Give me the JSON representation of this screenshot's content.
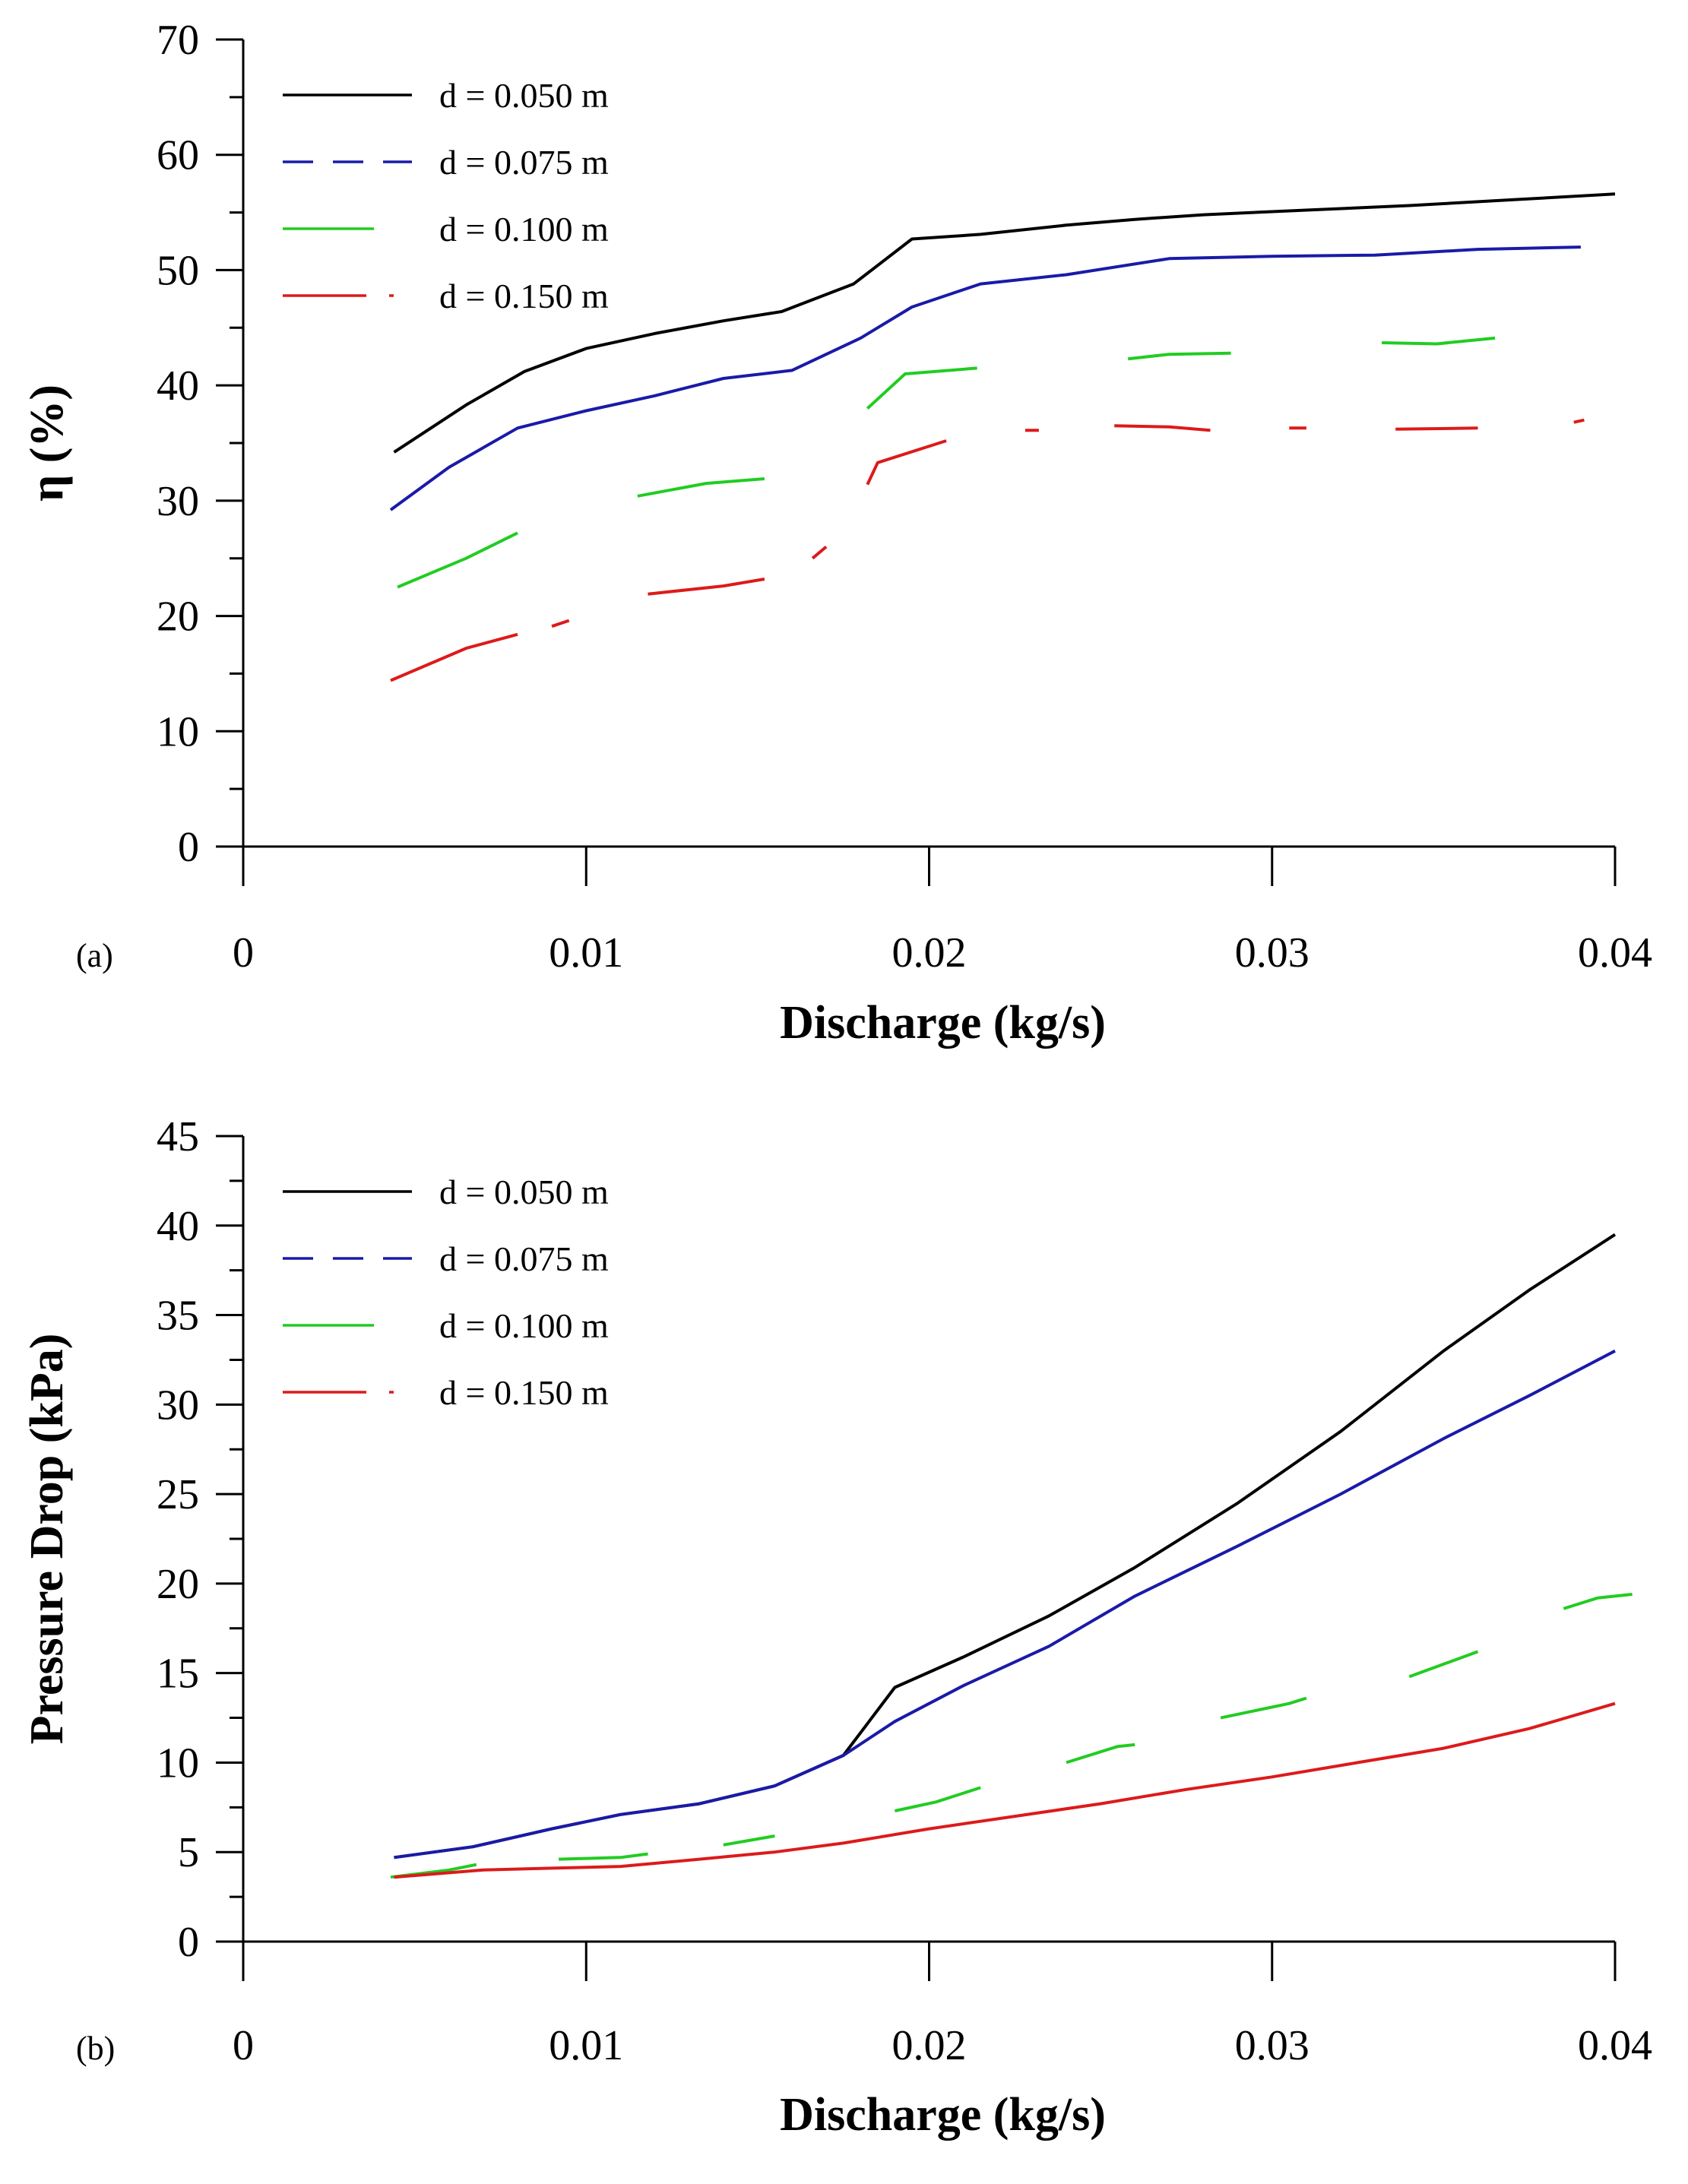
{
  "chart_data": [
    {
      "type": "line",
      "panel_label": "(a)",
      "xlabel": "Discharge (kg/s)",
      "ylabel": "η (%)",
      "xlim": [
        0,
        0.04
      ],
      "ylim": [
        0,
        70
      ],
      "xticks": [
        0,
        0.01,
        0.02,
        0.03,
        0.04
      ],
      "xtick_labels": [
        "0",
        "0.01",
        "0.02",
        "0.03",
        "0.04"
      ],
      "yticks": [
        0,
        10,
        20,
        30,
        40,
        50,
        60,
        70
      ],
      "ytick_labels": [
        "0",
        "10",
        "20",
        "30",
        "40",
        "50",
        "60",
        "70"
      ],
      "legend_position": "top-left",
      "series": [
        {
          "name": "d = 0.050 m",
          "color": "#000000",
          "dash": "solid",
          "x": [
            0.0044,
            0.0065,
            0.0082,
            0.01,
            0.012,
            0.014,
            0.0157,
            0.0178,
            0.0195,
            0.0215,
            0.024,
            0.026,
            0.028,
            0.031,
            0.034,
            0.037,
            0.04
          ],
          "y": [
            34.2,
            38.3,
            41.2,
            43.2,
            44.5,
            45.6,
            46.4,
            48.8,
            52.7,
            53.1,
            53.9,
            54.4,
            54.8,
            55.2,
            55.6,
            56.1,
            56.6
          ]
        },
        {
          "name": "d = 0.075 m",
          "color": "#1a1aa8",
          "dash": "long-dash",
          "x": [
            0.0043,
            0.006,
            0.008,
            0.01,
            0.012,
            0.014,
            0.016,
            0.018,
            0.0195,
            0.0215,
            0.024,
            0.027,
            0.03,
            0.033,
            0.036,
            0.039
          ],
          "y": [
            29.2,
            32.9,
            36.3,
            37.8,
            39.1,
            40.6,
            41.3,
            44.1,
            46.8,
            48.8,
            49.6,
            51.0,
            51.2,
            51.3,
            51.8,
            52.0
          ]
        },
        {
          "name": "d = 0.100 m",
          "color": "#22cc22",
          "dash": "long-gap",
          "x": [
            0.0045,
            0.0065,
            0.008,
            0.0115,
            0.0135,
            0.0152,
            0.0182,
            0.0193,
            0.0214,
            0.0258,
            0.027,
            0.0288,
            0.0332,
            0.0348,
            0.0365
          ],
          "y": [
            22.5,
            25.0,
            27.2,
            30.4,
            31.5,
            31.9,
            38.0,
            41.0,
            41.5,
            42.3,
            42.7,
            42.8,
            43.7,
            43.6,
            44.1
          ],
          "segments": [
            [
              0,
              2
            ],
            [
              3,
              5
            ],
            [
              6,
              8
            ],
            [
              9,
              11
            ],
            [
              12,
              14
            ]
          ]
        },
        {
          "name": "d = 0.150 m",
          "color": "#dd1a1a",
          "dash": "dash-dot",
          "x": [
            0.0043,
            0.0065,
            0.008,
            0.009,
            0.0095,
            0.0118,
            0.014,
            0.0152,
            0.0166,
            0.017,
            0.0182,
            0.0185,
            0.0205,
            0.0228,
            0.0232,
            0.0254,
            0.027,
            0.0282,
            0.0305,
            0.031,
            0.0336,
            0.036,
            0.0388,
            0.0391
          ],
          "y": [
            14.4,
            17.2,
            18.4,
            19.1,
            19.6,
            21.9,
            22.6,
            23.2,
            25.0,
            26.0,
            31.4,
            33.3,
            35.2,
            36.1,
            36.1,
            36.5,
            36.4,
            36.1,
            36.3,
            36.3,
            36.2,
            36.3,
            36.8,
            37.0
          ],
          "segments": [
            [
              0,
              2
            ],
            [
              3,
              4
            ],
            [
              5,
              7
            ],
            [
              8,
              9
            ],
            [
              10,
              12
            ],
            [
              13,
              14
            ],
            [
              15,
              17
            ],
            [
              18,
              19
            ],
            [
              20,
              21
            ],
            [
              22,
              23
            ]
          ]
        }
      ]
    },
    {
      "type": "line",
      "panel_label": "(b)",
      "xlabel": "Discharge (kg/s)",
      "ylabel": "Pressure Drop (kPa)",
      "xlim": [
        0,
        0.04
      ],
      "ylim": [
        0,
        45
      ],
      "xticks": [
        0,
        0.01,
        0.02,
        0.03,
        0.04
      ],
      "xtick_labels": [
        "0",
        "0.01",
        "0.02",
        "0.03",
        "0.04"
      ],
      "yticks": [
        0,
        5,
        10,
        15,
        20,
        25,
        30,
        35,
        40,
        45
      ],
      "ytick_labels": [
        "0",
        "5",
        "10",
        "15",
        "20",
        "25",
        "30",
        "35",
        "40",
        "45"
      ],
      "legend_position": "top-left",
      "series": [
        {
          "name": "d = 0.050 m",
          "color": "#000000",
          "dash": "solid",
          "x": [
            0.0044,
            0.0067,
            0.009,
            0.011,
            0.0133,
            0.0155,
            0.0175,
            0.019,
            0.021,
            0.0235,
            0.026,
            0.029,
            0.032,
            0.035,
            0.0375,
            0.04
          ],
          "y": [
            4.7,
            5.3,
            6.3,
            7.1,
            7.7,
            8.7,
            10.4,
            14.2,
            15.9,
            18.2,
            20.9,
            24.5,
            28.5,
            33.0,
            36.4,
            39.5
          ]
        },
        {
          "name": "d = 0.075 m",
          "color": "#1a1aa8",
          "dash": "long-dash",
          "x": [
            0.0044,
            0.0067,
            0.009,
            0.011,
            0.0133,
            0.0155,
            0.0175,
            0.019,
            0.021,
            0.0235,
            0.026,
            0.029,
            0.032,
            0.035,
            0.0375,
            0.04
          ],
          "y": [
            4.7,
            5.3,
            6.3,
            7.1,
            7.7,
            8.7,
            10.4,
            12.3,
            14.3,
            16.5,
            19.3,
            22.1,
            25.0,
            28.1,
            30.5,
            33.0
          ]
        },
        {
          "name": "d = 0.100 m",
          "color": "#22cc22",
          "dash": "long-gap",
          "x": [
            0.0043,
            0.006,
            0.0068,
            0.0092,
            0.011,
            0.0118,
            0.014,
            0.0155,
            0.019,
            0.0202,
            0.0215,
            0.024,
            0.0255,
            0.026,
            0.0285,
            0.0305,
            0.031,
            0.034,
            0.035,
            0.036,
            0.0385,
            0.0395,
            0.0405
          ],
          "y": [
            3.6,
            4.0,
            4.3,
            4.6,
            4.7,
            4.9,
            5.4,
            5.9,
            7.3,
            7.8,
            8.6,
            10.0,
            10.9,
            11.0,
            12.5,
            13.3,
            13.6,
            14.8,
            15.5,
            16.2,
            18.6,
            19.2,
            19.4
          ],
          "segments": [
            [
              0,
              2
            ],
            [
              3,
              5
            ],
            [
              6,
              7
            ],
            [
              8,
              10
            ],
            [
              11,
              13
            ],
            [
              14,
              16
            ],
            [
              17,
              19
            ],
            [
              20,
              22
            ]
          ]
        },
        {
          "name": "d = 0.150 m",
          "color": "#dd1a1a",
          "dash": "dash-dot",
          "x": [
            0.0044,
            0.007,
            0.009,
            0.011,
            0.0133,
            0.0155,
            0.0175,
            0.02,
            0.0225,
            0.025,
            0.0275,
            0.03,
            0.0325,
            0.035,
            0.0375,
            0.04
          ],
          "y": [
            3.6,
            4.0,
            4.1,
            4.2,
            4.6,
            5.0,
            5.5,
            6.3,
            7.0,
            7.7,
            8.5,
            9.2,
            10.0,
            10.8,
            11.9,
            13.3
          ]
        }
      ]
    }
  ]
}
